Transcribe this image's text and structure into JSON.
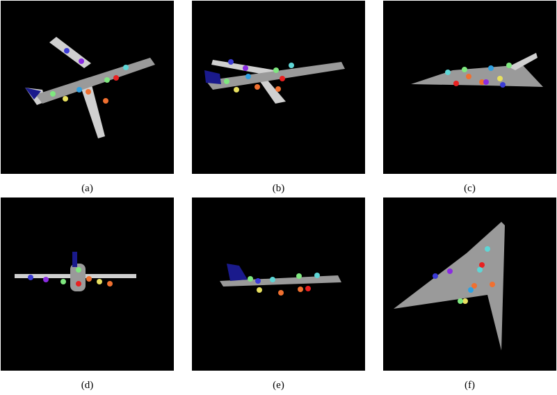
{
  "figure": {
    "panels": [
      {
        "id": "a",
        "caption": "(a)"
      },
      {
        "id": "b",
        "caption": "(b)"
      },
      {
        "id": "c",
        "caption": "(c)"
      },
      {
        "id": "d",
        "caption": "(d)"
      },
      {
        "id": "e",
        "caption": "(e)"
      },
      {
        "id": "f",
        "caption": "(f)"
      }
    ],
    "colors": {
      "background": "#000000",
      "fuselage": "#9a9a9a",
      "wing": "#d0d0d0",
      "tail": "#1a1a8c",
      "keypoints": [
        "#3b3bd6",
        "#8a2be2",
        "#5ed6d6",
        "#7fe87f",
        "#e82020",
        "#f07030",
        "#e8e060",
        "#30a0e0",
        "#d050d0"
      ]
    }
  }
}
